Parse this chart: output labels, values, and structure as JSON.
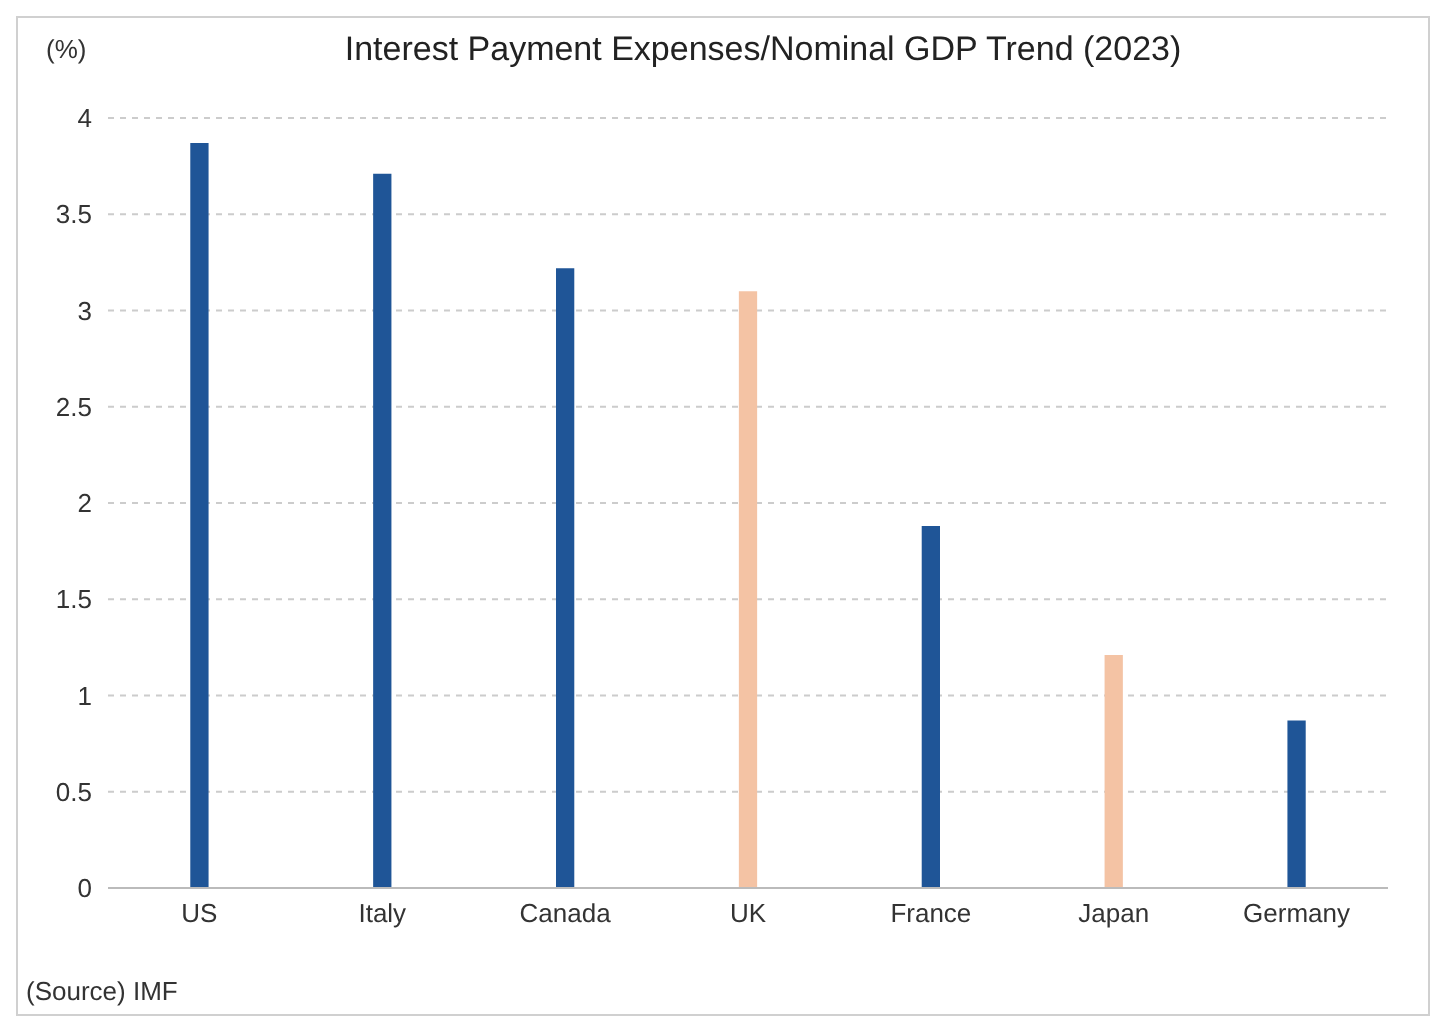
{
  "chart_data": {
    "type": "bar",
    "title": "Interest Payment Expenses/Nominal GDP Trend (2023)",
    "ylabel": "(%)",
    "categories": [
      "US",
      "Italy",
      "Canada",
      "UK",
      "France",
      "Japan",
      "Germany"
    ],
    "values": [
      3.87,
      3.71,
      3.22,
      3.1,
      1.88,
      1.21,
      0.87
    ],
    "colors": [
      "#1f5597",
      "#1f5597",
      "#1f5597",
      "#f4c3a4",
      "#1f5597",
      "#f4c3a4",
      "#1f5597"
    ],
    "ylim": [
      0,
      4
    ],
    "yticks": [
      0,
      0.5,
      1,
      1.5,
      2,
      2.5,
      3,
      3.5,
      4
    ],
    "grid": "y",
    "annotations": [
      "(Source) IMF"
    ]
  }
}
